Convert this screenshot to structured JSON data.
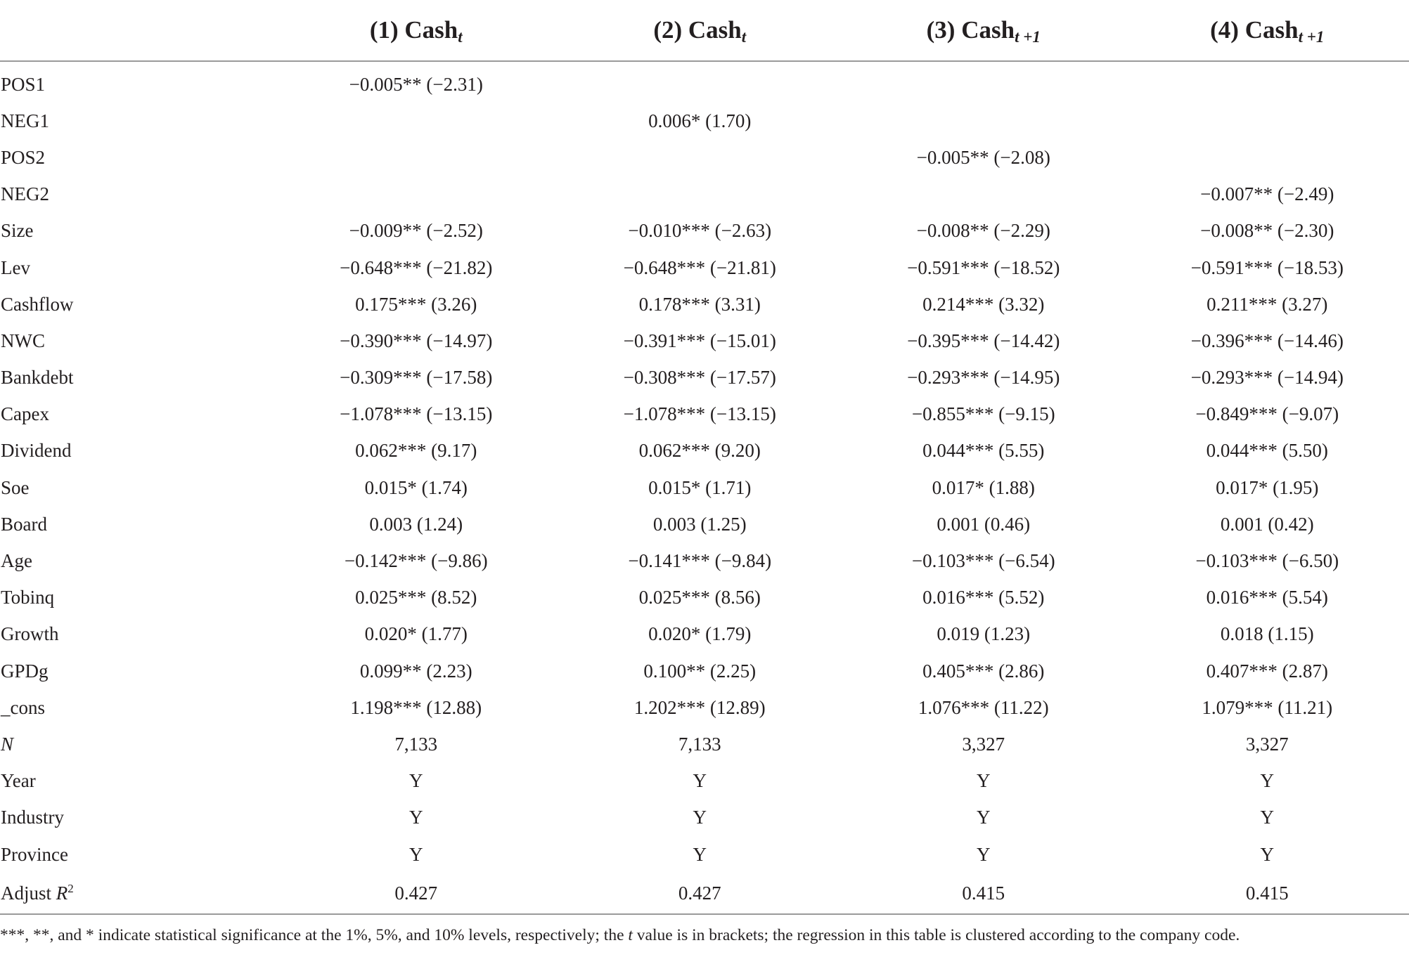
{
  "header": {
    "columns": [
      {
        "base": "(1) Cash",
        "sub": "t"
      },
      {
        "base": "(2) Cash",
        "sub": "t"
      },
      {
        "base": "(3) Cash",
        "sub": "t +1"
      },
      {
        "base": "(4) Cash",
        "sub": "t +1"
      }
    ]
  },
  "rows": [
    {
      "label": "POS1",
      "cells": [
        "−0.005** (−2.31)",
        "",
        "",
        ""
      ]
    },
    {
      "label": "NEG1",
      "cells": [
        "",
        "0.006* (1.70)",
        "",
        ""
      ]
    },
    {
      "label": "POS2",
      "cells": [
        "",
        "",
        "−0.005** (−2.08)",
        ""
      ]
    },
    {
      "label": "NEG2",
      "cells": [
        "",
        "",
        "",
        "−0.007** (−2.49)"
      ]
    },
    {
      "label": "Size",
      "cells": [
        "−0.009** (−2.52)",
        "−0.010*** (−2.63)",
        "−0.008** (−2.29)",
        "−0.008** (−2.30)"
      ]
    },
    {
      "label": "Lev",
      "cells": [
        "−0.648*** (−21.82)",
        "−0.648*** (−21.81)",
        "−0.591*** (−18.52)",
        "−0.591*** (−18.53)"
      ]
    },
    {
      "label": "Cashflow",
      "cells": [
        "0.175*** (3.26)",
        "0.178*** (3.31)",
        "0.214*** (3.32)",
        "0.211*** (3.27)"
      ]
    },
    {
      "label": "NWC",
      "cells": [
        "−0.390*** (−14.97)",
        "−0.391*** (−15.01)",
        "−0.395*** (−14.42)",
        "−0.396*** (−14.46)"
      ]
    },
    {
      "label": "Bankdebt",
      "cells": [
        "−0.309*** (−17.58)",
        "−0.308*** (−17.57)",
        "−0.293*** (−14.95)",
        "−0.293*** (−14.94)"
      ]
    },
    {
      "label": "Capex",
      "cells": [
        "−1.078*** (−13.15)",
        "−1.078*** (−13.15)",
        "−0.855*** (−9.15)",
        "−0.849*** (−9.07)"
      ]
    },
    {
      "label": "Dividend",
      "cells": [
        "0.062*** (9.17)",
        "0.062*** (9.20)",
        "0.044*** (5.55)",
        "0.044*** (5.50)"
      ]
    },
    {
      "label": "Soe",
      "cells": [
        "0.015* (1.74)",
        "0.015* (1.71)",
        "0.017* (1.88)",
        "0.017* (1.95)"
      ]
    },
    {
      "label": "Board",
      "cells": [
        "0.003 (1.24)",
        "0.003 (1.25)",
        "0.001 (0.46)",
        "0.001 (0.42)"
      ]
    },
    {
      "label": "Age",
      "cells": [
        "−0.142*** (−9.86)",
        "−0.141*** (−9.84)",
        "−0.103*** (−6.54)",
        "−0.103*** (−6.50)"
      ]
    },
    {
      "label": "Tobinq",
      "cells": [
        "0.025*** (8.52)",
        "0.025*** (8.56)",
        "0.016*** (5.52)",
        "0.016*** (5.54)"
      ]
    },
    {
      "label": "Growth",
      "cells": [
        "0.020* (1.77)",
        "0.020* (1.79)",
        "0.019 (1.23)",
        "0.018 (1.15)"
      ]
    },
    {
      "label": "GPDg",
      "cells": [
        "0.099** (2.23)",
        "0.100** (2.25)",
        "0.405*** (2.86)",
        "0.407*** (2.87)"
      ]
    },
    {
      "label": "_cons",
      "cells": [
        "1.198*** (12.88)",
        "1.202*** (12.89)",
        "1.076*** (11.22)",
        "1.079*** (11.21)"
      ]
    },
    {
      "label": "N",
      "italic": true,
      "cells": [
        "7,133",
        "7,133",
        "3,327",
        "3,327"
      ]
    },
    {
      "label": "Year",
      "cells": [
        "Y",
        "Y",
        "Y",
        "Y"
      ]
    },
    {
      "label": "Industry",
      "cells": [
        "Y",
        "Y",
        "Y",
        "Y"
      ]
    },
    {
      "label": "Province",
      "cells": [
        "Y",
        "Y",
        "Y",
        "Y"
      ]
    },
    {
      "label": "Adjust ",
      "label_italic_part": "R",
      "label_sup": "2",
      "cells": [
        "0.427",
        "0.427",
        "0.415",
        "0.415"
      ]
    }
  ],
  "footnote": {
    "before_t": "***, **, and * indicate statistical significance at the 1%, 5%, and 10% levels, respectively; the ",
    "t": "t",
    "after_t": " value is in brackets; the regression in this table is clustered according to the company code."
  }
}
